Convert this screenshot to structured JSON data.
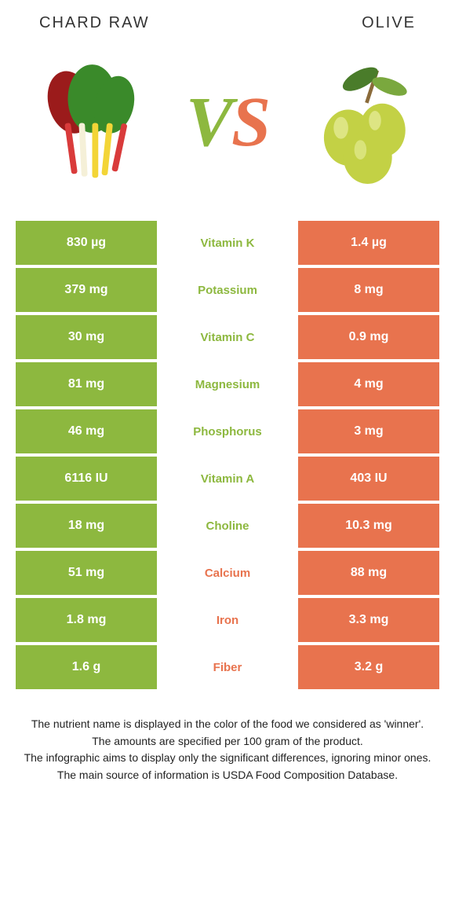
{
  "header": {
    "left_title": "Chard raw",
    "right_title": "Olive"
  },
  "vs": {
    "v": "V",
    "s": "S"
  },
  "colors": {
    "left_bg": "#8db83f",
    "right_bg": "#e8734e",
    "left_text": "#8db83f",
    "right_text": "#e8734e",
    "vs_v": "#8db83f",
    "vs_s": "#e8734e"
  },
  "rows": [
    {
      "left": "830 µg",
      "mid": "Vitamin K",
      "right": "1.4 µg",
      "winner": "left"
    },
    {
      "left": "379 mg",
      "mid": "Potassium",
      "right": "8 mg",
      "winner": "left"
    },
    {
      "left": "30 mg",
      "mid": "Vitamin C",
      "right": "0.9 mg",
      "winner": "left"
    },
    {
      "left": "81 mg",
      "mid": "Magnesium",
      "right": "4 mg",
      "winner": "left"
    },
    {
      "left": "46 mg",
      "mid": "Phosphorus",
      "right": "3 mg",
      "winner": "left"
    },
    {
      "left": "6116 IU",
      "mid": "Vitamin A",
      "right": "403 IU",
      "winner": "left"
    },
    {
      "left": "18 mg",
      "mid": "Choline",
      "right": "10.3 mg",
      "winner": "left"
    },
    {
      "left": "51 mg",
      "mid": "Calcium",
      "right": "88 mg",
      "winner": "right"
    },
    {
      "left": "1.8 mg",
      "mid": "Iron",
      "right": "3.3 mg",
      "winner": "right"
    },
    {
      "left": "1.6 g",
      "mid": "Fiber",
      "right": "3.2 g",
      "winner": "right"
    }
  ],
  "footer": {
    "line1": "The nutrient name is displayed in the color of the food we considered as 'winner'.",
    "line2": "The amounts are specified per 100 gram of the product.",
    "line3": "The infographic aims to display only the significant differences, ignoring minor ones.",
    "line4": "The main source of information is USDA Food Composition Database."
  }
}
